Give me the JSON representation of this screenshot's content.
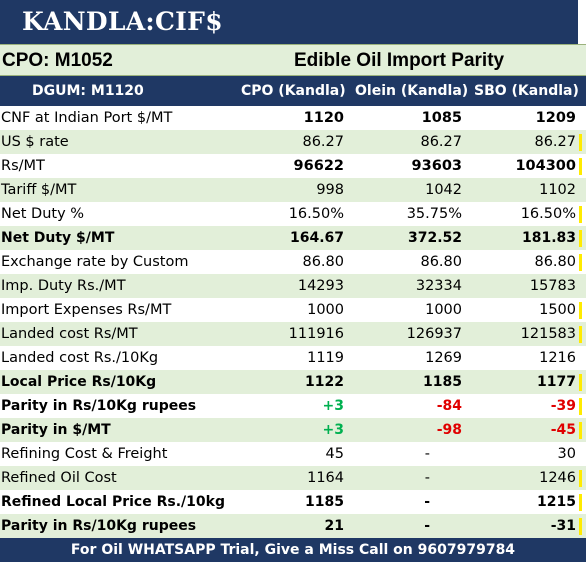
{
  "title": "KANDLA:CIF$",
  "subheader": {
    "left": "CPO: M1052",
    "center": "Edible Oil Import Parity"
  },
  "columns": {
    "label": "DGUM: M1120",
    "c1": "CPO (Kandla)",
    "c2": "Olein (Kandla)",
    "c3": "SBO (Kandla)"
  },
  "rows": [
    {
      "label": "CNF at Indian Port $/MT",
      "c1": "1120",
      "c2": "1085",
      "c3": "1209",
      "bold_values": true
    },
    {
      "label": "US $ rate",
      "c1": "86.27",
      "c2": "86.27",
      "c3": "86.27"
    },
    {
      "label": "Rs/MT",
      "c1": "96622",
      "c2": "93603",
      "c3": "104300",
      "bold_values": true
    },
    {
      "label": "Tariff $/MT",
      "c1": "998",
      "c2": "1042",
      "c3": "1102"
    },
    {
      "label": "Net Duty %",
      "c1": "16.50%",
      "c2": "35.75%",
      "c3": "16.50%"
    },
    {
      "label": "Net Duty $/MT",
      "c1": "164.67",
      "c2": "372.52",
      "c3": "181.83",
      "bold": true
    },
    {
      "label": "Exchange rate by Custom",
      "c1": "86.80",
      "c2": "86.80",
      "c3": "86.80"
    },
    {
      "label": "Imp. Duty Rs./MT",
      "c1": "14293",
      "c2": "32334",
      "c3": "15783"
    },
    {
      "label": "Import Expenses Rs/MT",
      "c1": "1000",
      "c2": "1000",
      "c3": "1500"
    },
    {
      "label": "Landed cost Rs/MT",
      "c1": "111916",
      "c2": "126937",
      "c3": "121583"
    },
    {
      "label": "Landed cost Rs./10Kg",
      "c1": "1119",
      "c2": "1269",
      "c3": "1216"
    },
    {
      "label": "Local Price Rs/10Kg",
      "c1": "1122",
      "c2": "1185",
      "c3": "1177",
      "bold": true
    },
    {
      "label": "Parity in Rs/10Kg rupees",
      "c1": "+3",
      "c2": "-84",
      "c3": "-39",
      "bold": true,
      "colored": true
    },
    {
      "label": "Parity in $/MT",
      "c1": "+3",
      "c2": "-98",
      "c3": "-45",
      "bold": true,
      "colored": true
    },
    {
      "label": "Refining Cost & Freight",
      "c1": "45",
      "c2": "-",
      "c3": "30"
    },
    {
      "label": "Refined Oil Cost",
      "c1": "1164",
      "c2": "-",
      "c3": "1246"
    },
    {
      "label": "Refined Local Price Rs./10kg",
      "c1": "1185",
      "c2": "-",
      "c3": "1215",
      "bold": true
    },
    {
      "label": "Parity in Rs/10Kg rupees",
      "c1": "21",
      "c2": "-",
      "c3": "-31",
      "bold": true
    }
  ],
  "footer": "For Oil WHATSAPP Trial, Give a Miss Call on 9607979784",
  "colors": {
    "header_bg": "#1f3864",
    "stripe": "#e2efd9",
    "positive": "#00b050",
    "negative": "#e00000",
    "marker": "#ffeb00"
  }
}
